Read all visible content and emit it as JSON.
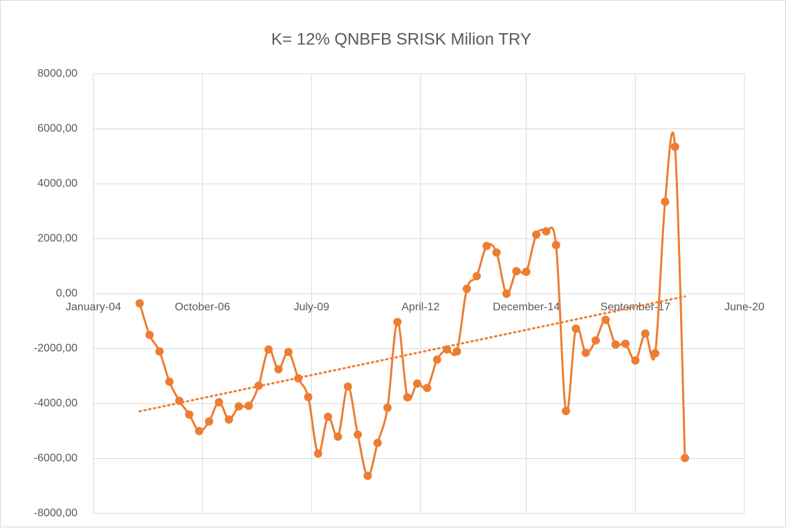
{
  "chart_data": {
    "type": "line",
    "title": "K= 12%  QNBFB SRISK Milion TRY",
    "x": [
      "2005-03",
      "2005-06",
      "2005-09",
      "2005-12",
      "2006-03",
      "2006-06",
      "2006-09",
      "2006-12",
      "2007-03",
      "2007-06",
      "2007-09",
      "2007-12",
      "2008-03",
      "2008-06",
      "2008-09",
      "2008-12",
      "2009-03",
      "2009-06",
      "2009-09",
      "2009-12",
      "2010-03",
      "2010-06",
      "2010-09",
      "2010-12",
      "2011-03",
      "2011-06",
      "2011-09",
      "2011-12",
      "2012-03",
      "2012-06",
      "2012-09",
      "2012-12",
      "2013-03",
      "2013-06",
      "2013-09",
      "2013-12",
      "2014-03",
      "2014-06",
      "2014-09",
      "2014-12",
      "2015-03",
      "2015-06",
      "2015-09",
      "2015-12",
      "2016-03",
      "2016-06",
      "2016-09",
      "2016-12",
      "2017-03",
      "2017-06",
      "2017-09",
      "2017-12",
      "2018-03",
      "2018-06",
      "2018-09",
      "2018-12"
    ],
    "series": [
      {
        "color": "#ed7d31",
        "values": [
          -350,
          -1500,
          -2100,
          -3200,
          -3900,
          -4400,
          -5000,
          -4650,
          -3950,
          -4580,
          -4100,
          -4080,
          -3350,
          -2030,
          -2750,
          -2120,
          -3080,
          -3760,
          -5820,
          -4480,
          -5200,
          -3380,
          -5130,
          -6630,
          -5430,
          -4150,
          -1030,
          -3770,
          -3270,
          -3430,
          -2400,
          -2030,
          -2100,
          180,
          640,
          1740,
          1500,
          0,
          820,
          800,
          2150,
          2270,
          1770,
          -4270,
          -1270,
          -2150,
          -1700,
          -950,
          -1850,
          -1820,
          -2430,
          -1450,
          -2170,
          3350,
          5350,
          -5980
        ]
      }
    ],
    "trendline": "linear",
    "xlim": [
      "2004-01",
      "2020-06"
    ],
    "xticks": [
      {
        "value": "2004-01",
        "label": "January-04"
      },
      {
        "value": "2006-10",
        "label": "October-06"
      },
      {
        "value": "2009-07",
        "label": "July-09"
      },
      {
        "value": "2012-04",
        "label": "April-12"
      },
      {
        "value": "2014-12",
        "label": "December-14"
      },
      {
        "value": "2017-09",
        "label": "September-17"
      },
      {
        "value": "2020-06",
        "label": "June-20"
      }
    ],
    "ylim": [
      -8000,
      8000
    ],
    "yticks": [
      {
        "value": -8000,
        "label": "-8000,00"
      },
      {
        "value": -6000,
        "label": "-6000,00"
      },
      {
        "value": -4000,
        "label": "-4000,00"
      },
      {
        "value": -2000,
        "label": "-2000,00"
      },
      {
        "value": 0,
        "label": "0,00"
      },
      {
        "value": 2000,
        "label": "2000,00"
      },
      {
        "value": 4000,
        "label": "4000,00"
      },
      {
        "value": 6000,
        "label": "6000,00"
      },
      {
        "value": 8000,
        "label": "8000,00"
      }
    ],
    "grid": true
  }
}
